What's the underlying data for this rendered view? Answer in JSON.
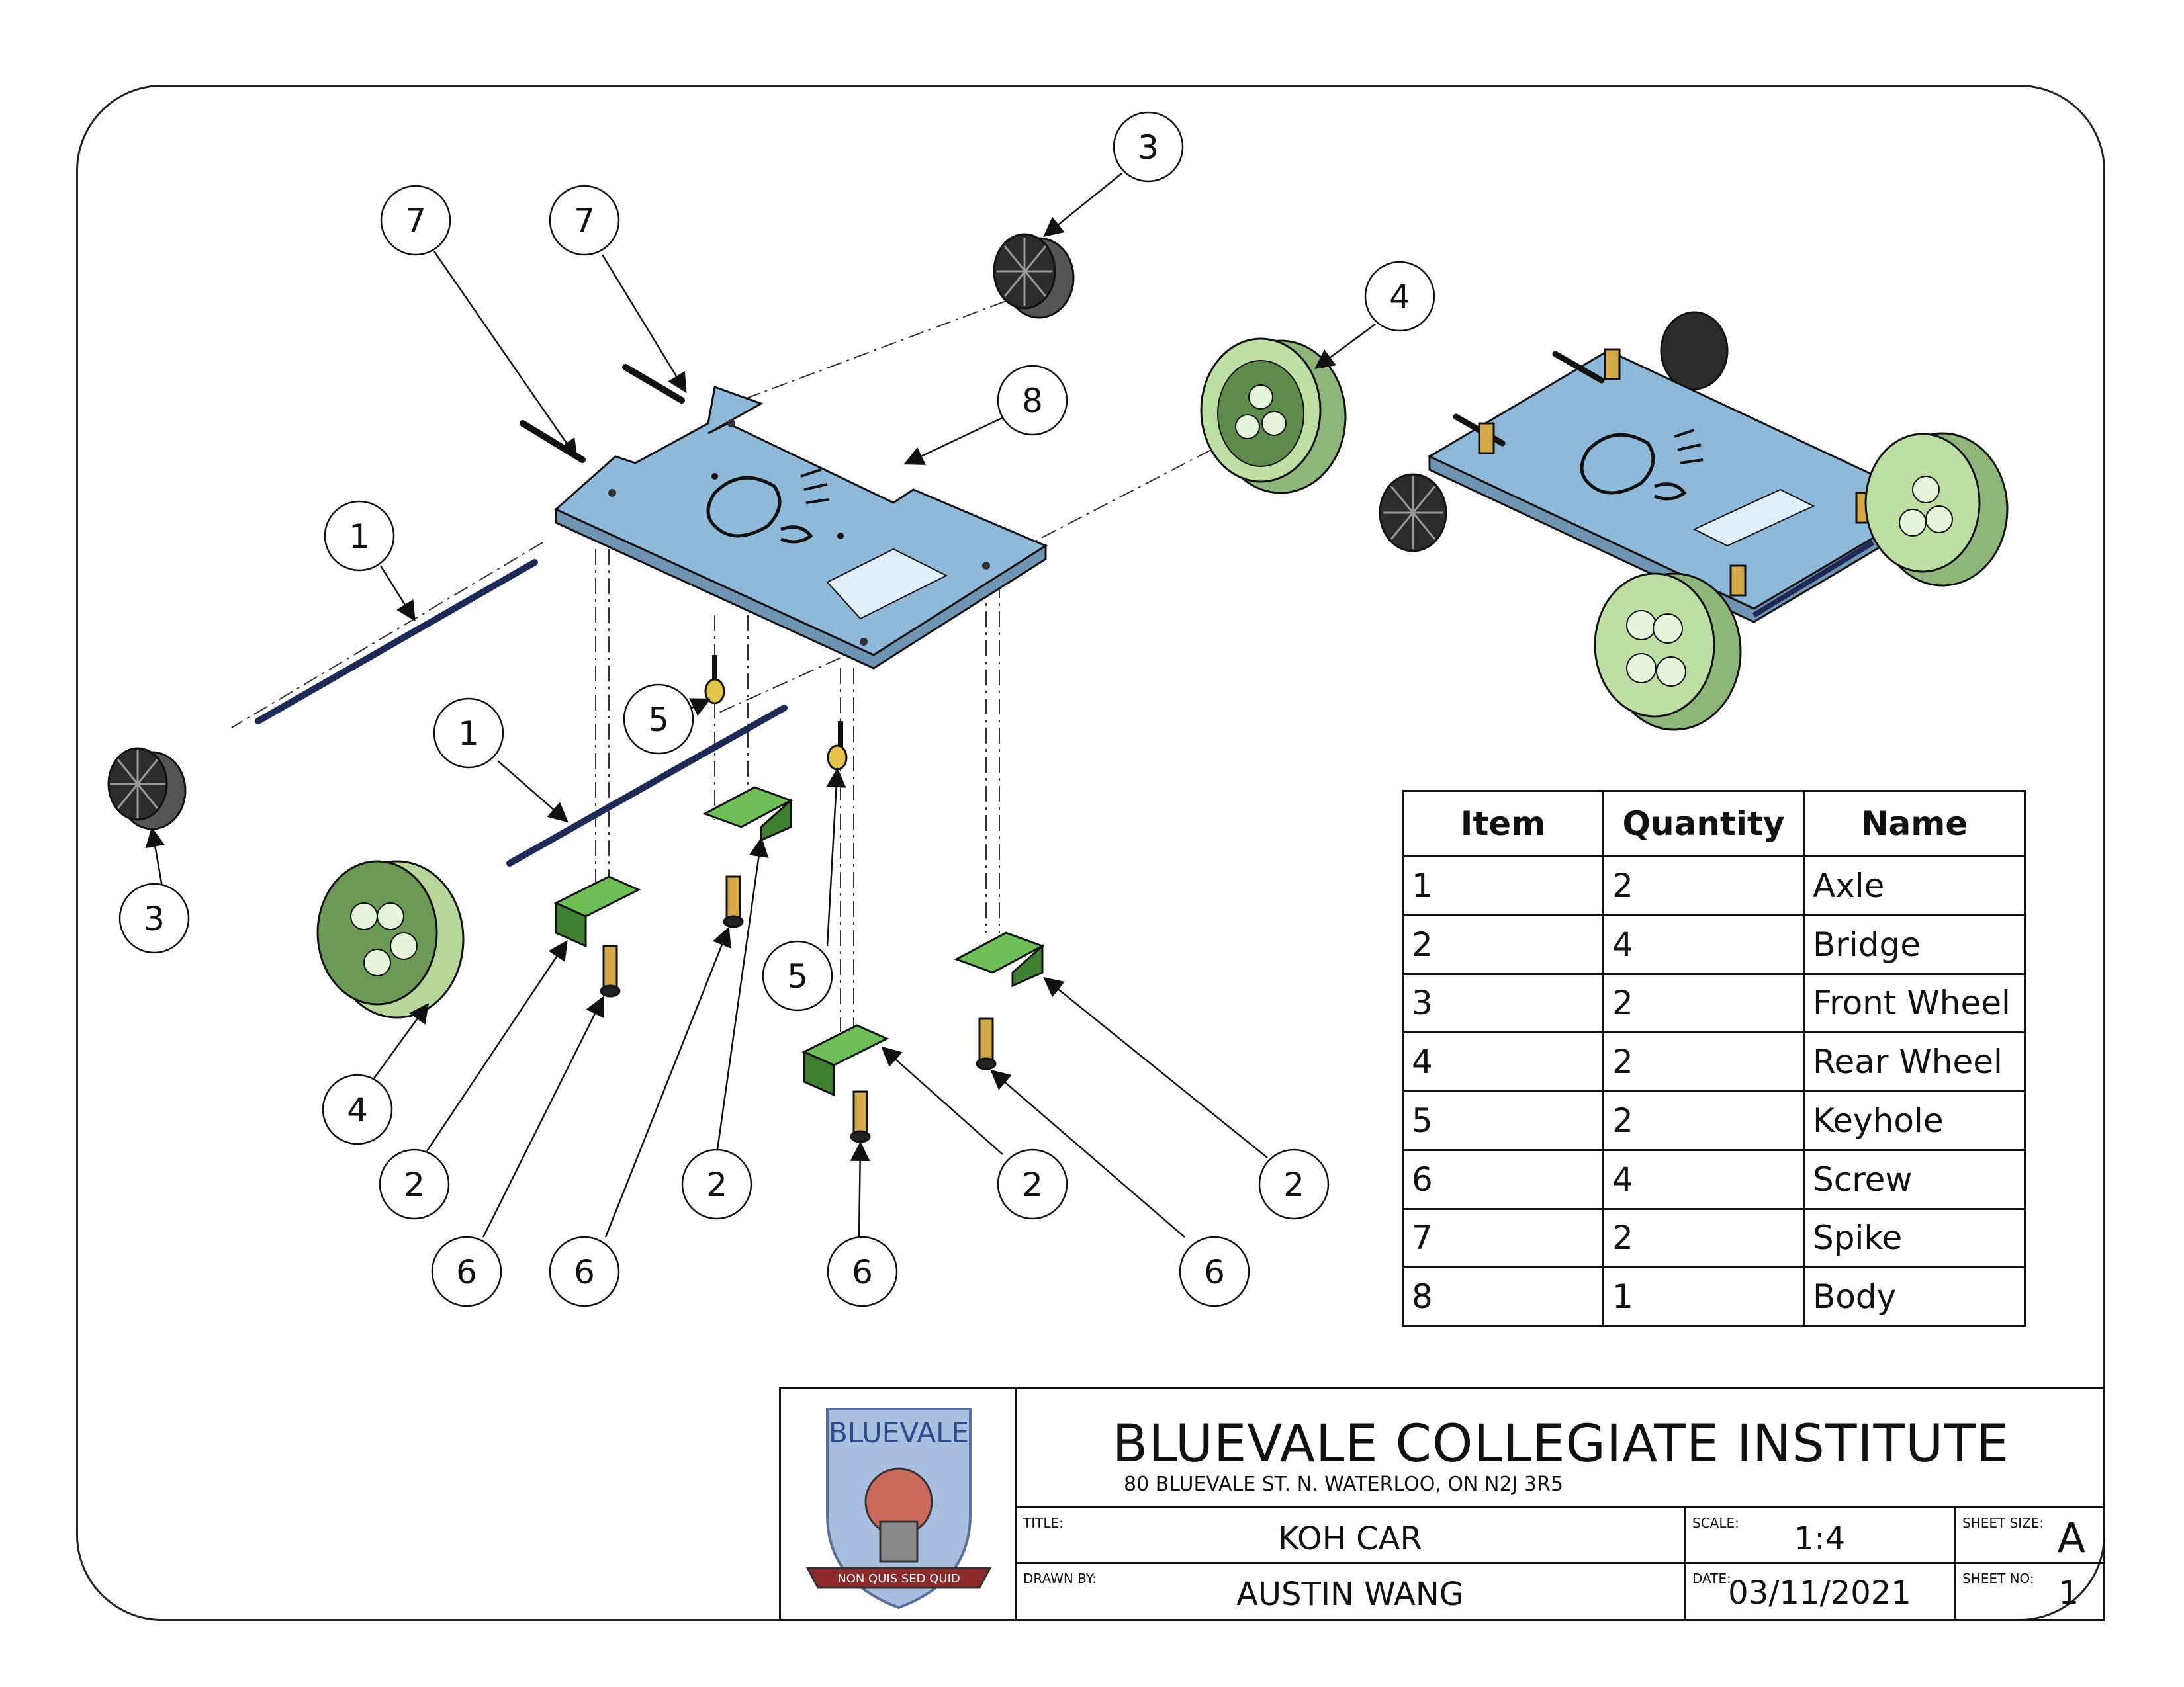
{
  "bom": {
    "headers": [
      "Item",
      "Quantity",
      "Name"
    ],
    "rows": [
      [
        "1",
        "2",
        "Axle"
      ],
      [
        "2",
        "4",
        "Bridge"
      ],
      [
        "3",
        "2",
        "Front Wheel"
      ],
      [
        "4",
        "2",
        "Rear Wheel"
      ],
      [
        "5",
        "2",
        "Keyhole"
      ],
      [
        "6",
        "4",
        "Screw"
      ],
      [
        "7",
        "2",
        "Spike"
      ],
      [
        "8",
        "1",
        "Body"
      ]
    ]
  },
  "title_block": {
    "institution": "BLUEVALE COLLEGIATE INSTITUTE",
    "address": "80 BLUEVALE ST. N. WATERLOO, ON N2J 3R5",
    "title_label": "TITLE:",
    "title": "KOH CAR",
    "drawn_by_label": "DRAWN BY:",
    "drawn_by": "AUSTIN WANG",
    "scale_label": "SCALE:",
    "scale": "1:4",
    "date_label": "DATE:",
    "date": "03/11/2021",
    "sheet_size_label": "SHEET SIZE:",
    "sheet_size": "A",
    "sheet_no_label": "SHEET NO:",
    "sheet_no": "1",
    "logo_text": "BLUEVALE",
    "logo_motto": "NON QUIS SED QUID"
  },
  "balloons": [
    "7",
    "7",
    "3",
    "8",
    "4",
    "1",
    "1",
    "3",
    "5",
    "5",
    "4",
    "2",
    "2",
    "2",
    "2",
    "6",
    "6",
    "6",
    "6"
  ],
  "colors": {
    "body": "#8fb9d8",
    "bridge": "#5aa64a",
    "wheel_rear": "#b7d69a",
    "wheel_front": "#3a3a3a",
    "screw": "#c9a34a",
    "axle": "#2a3a6a"
  }
}
